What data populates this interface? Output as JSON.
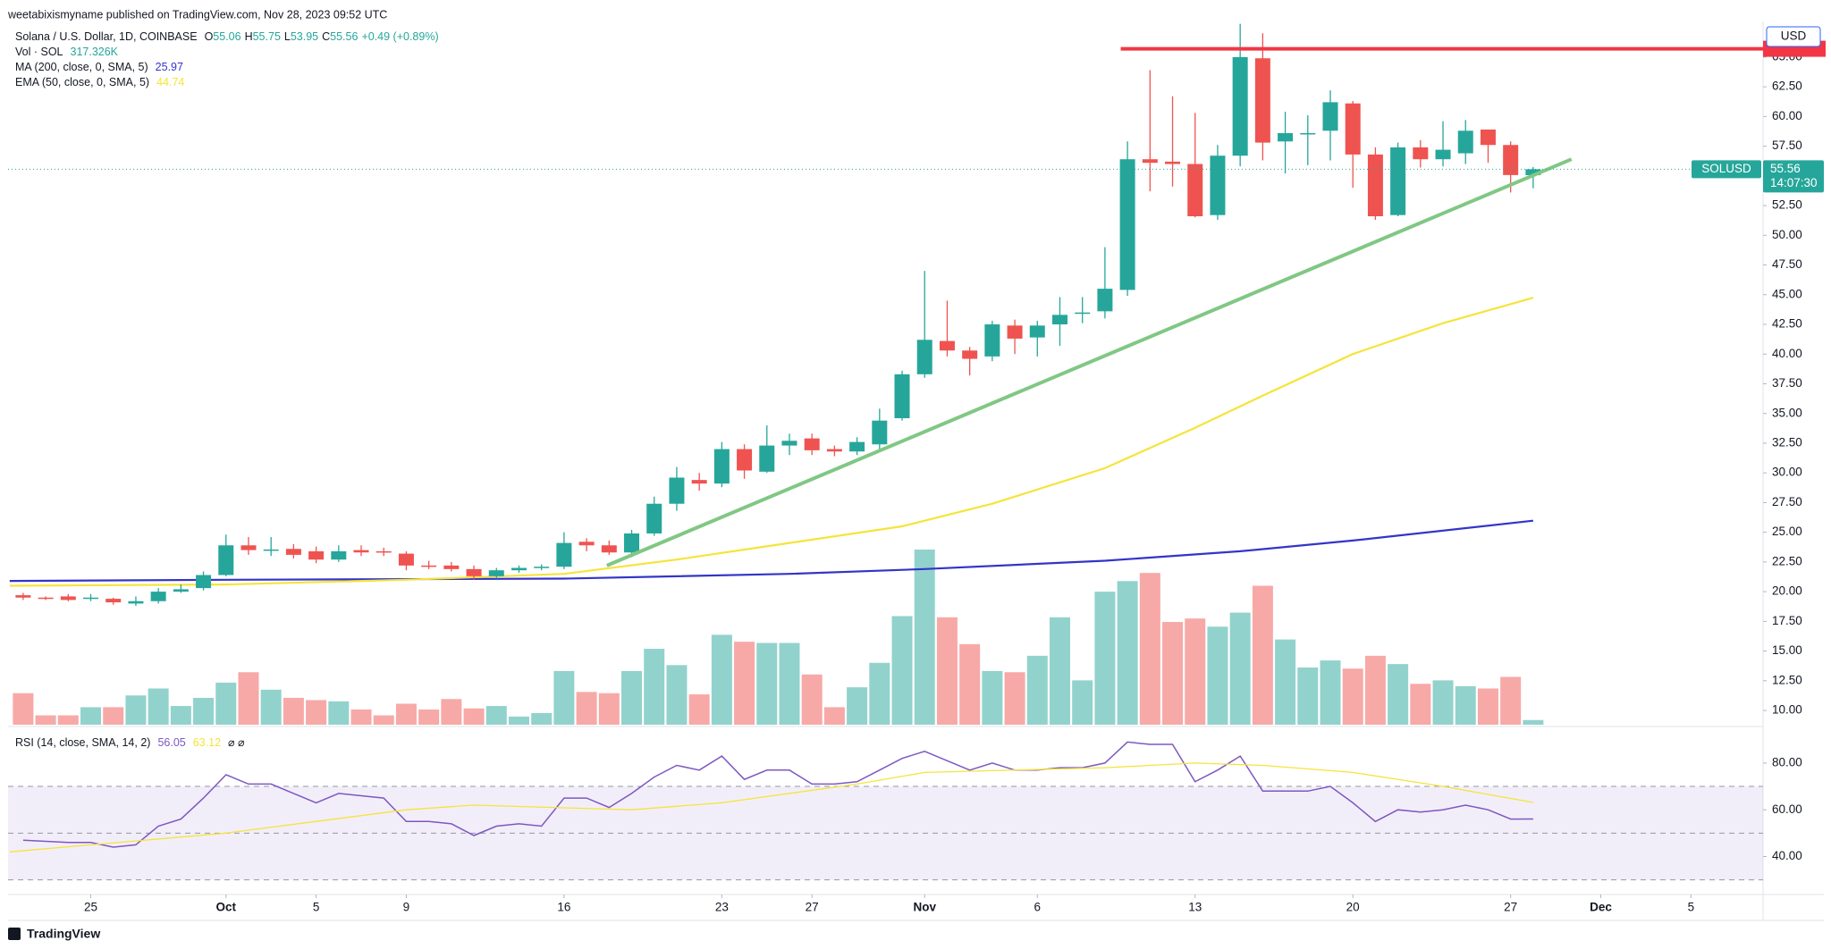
{
  "header": "weetabixismyname published on TradingView.com, Nov 28, 2023 09:52 UTC",
  "footer": "TradingView",
  "chart_data": [
    {
      "type": "candlestick",
      "title": "Solana / U.S. Dollar, 1D, COINBASE",
      "ohlc_letters": [
        "O",
        "H",
        "L",
        "C"
      ],
      "change": "+0.49 (+0.89%)",
      "up_color": "#26a69a",
      "down_color": "#ef5350",
      "open": [
        19.7,
        19.5,
        19.6,
        19.45,
        19.4,
        19.0,
        19.2,
        20.0,
        20.3,
        21.4,
        23.9,
        23.5,
        23.6,
        23.4,
        22.7,
        23.5,
        23.4,
        23.2,
        22.2,
        22.2,
        21.9,
        21.3,
        21.8,
        22.0,
        22.1,
        24.2,
        23.9,
        23.3,
        24.9,
        27.4,
        29.4,
        29.1,
        32.0,
        30.1,
        32.3,
        32.9,
        32.0,
        31.8,
        32.4,
        34.6,
        38.3,
        41.1,
        40.3,
        39.8,
        42.4,
        41.4,
        42.5,
        43.4,
        43.6,
        45.4,
        56.4,
        56.2,
        56.0,
        51.7,
        56.7,
        64.9,
        57.9,
        58.6,
        58.8,
        61.1,
        56.8,
        51.7,
        57.4,
        56.4,
        56.9,
        58.9,
        57.6,
        55.06
      ],
      "high": [
        19.9,
        19.6,
        19.8,
        19.8,
        19.5,
        19.6,
        20.3,
        20.6,
        21.7,
        24.8,
        24.6,
        24.6,
        24.0,
        23.8,
        23.9,
        23.9,
        23.7,
        23.4,
        22.6,
        22.5,
        22.2,
        22.0,
        22.2,
        22.3,
        25.0,
        24.5,
        24.3,
        25.2,
        28.0,
        30.5,
        30.0,
        32.6,
        32.4,
        34.0,
        33.3,
        33.3,
        32.3,
        33.0,
        35.4,
        38.6,
        47.0,
        44.5,
        40.6,
        42.8,
        42.9,
        42.8,
        44.8,
        44.8,
        49.0,
        57.9,
        63.9,
        61.7,
        60.3,
        57.6,
        67.8,
        67.0,
        60.4,
        60.1,
        62.2,
        61.3,
        57.4,
        57.8,
        58.0,
        59.6,
        59.7,
        58.9,
        57.9,
        55.75
      ],
      "low": [
        19.3,
        19.3,
        19.2,
        19.2,
        18.9,
        18.8,
        19.0,
        19.9,
        20.1,
        21.3,
        23.1,
        23.0,
        22.8,
        22.4,
        22.5,
        23.0,
        23.0,
        21.8,
        21.9,
        21.7,
        21.0,
        21.1,
        21.6,
        21.8,
        21.9,
        23.4,
        23.1,
        22.9,
        24.7,
        26.8,
        28.5,
        28.8,
        29.5,
        30.0,
        31.5,
        31.5,
        31.4,
        31.5,
        32.0,
        34.4,
        38.0,
        39.8,
        38.2,
        39.4,
        40.0,
        39.8,
        40.7,
        42.6,
        43.0,
        44.9,
        53.7,
        54.1,
        51.5,
        51.3,
        55.8,
        56.3,
        55.2,
        55.9,
        56.3,
        54.0,
        51.3,
        51.6,
        55.7,
        55.8,
        56.0,
        56.1,
        53.6,
        53.95
      ],
      "close": [
        19.5,
        19.45,
        19.3,
        19.5,
        19.1,
        19.2,
        20.0,
        20.2,
        21.4,
        23.9,
        23.5,
        23.55,
        23.1,
        22.7,
        23.4,
        23.3,
        23.3,
        22.2,
        22.1,
        21.9,
        21.3,
        21.8,
        22.0,
        22.1,
        24.1,
        23.9,
        23.3,
        24.9,
        27.4,
        29.6,
        29.1,
        32.0,
        30.2,
        32.3,
        32.7,
        31.9,
        31.8,
        32.6,
        34.4,
        38.3,
        41.2,
        40.3,
        39.6,
        42.5,
        41.3,
        42.4,
        43.3,
        43.5,
        45.5,
        56.4,
        56.1,
        56.0,
        51.6,
        56.7,
        65.0,
        57.8,
        58.6,
        58.6,
        61.2,
        56.8,
        51.6,
        57.4,
        56.4,
        57.2,
        58.8,
        57.6,
        55.07,
        55.56
      ],
      "volume_name": "Vol · SOL",
      "volume_legend": {
        "value": 317.326,
        "label": "317.326K"
      },
      "volume": [
        209,
        62,
        62,
        116,
        116,
        194,
        240,
        124,
        178,
        279,
        348,
        232,
        178,
        163,
        155,
        101,
        62,
        139,
        101,
        170,
        108,
        124,
        54,
        77,
        356,
        217,
        209,
        356,
        503,
        395,
        201,
        596,
        550,
        542,
        542,
        333,
        116,
        248,
        410,
        720,
        1161,
        712,
        534,
        356,
        348,
        457,
        712,
        294,
        882,
        952,
        1006,
        681,
        704,
        650,
        743,
        921,
        565,
        379,
        426,
        372,
        457,
        402,
        271,
        294,
        255,
        240,
        317,
        31
      ],
      "overlays": [
        {
          "name": "MA (200, close, 0, SMA, 5)",
          "color": "#3434c8",
          "x": [
            -0.6,
            9,
            24,
            34,
            40,
            48,
            54,
            59,
            67
          ],
          "values": [
            20.9,
            21.0,
            21.1,
            21.5,
            21.9,
            22.6,
            23.4,
            24.3,
            25.97
          ]
        },
        {
          "name": "EMA (50, close, 0, SMA, 5)",
          "color": "#f5e43a",
          "x": [
            -0.6,
            9,
            17,
            24,
            29,
            34,
            39,
            43,
            48,
            52,
            55,
            59,
            63,
            67
          ],
          "values": [
            20.5,
            20.6,
            21.0,
            21.5,
            22.7,
            24.1,
            25.5,
            27.4,
            30.4,
            33.8,
            36.5,
            40.0,
            42.6,
            44.74
          ]
        }
      ],
      "drawings": [
        {
          "color": "#81c784",
          "x": [
            25.9,
            68.7
          ],
          "values": [
            22.2,
            56.4
          ]
        },
        {
          "color": "#f23645",
          "x": [
            48.7,
            77.2
          ],
          "values": [
            65.7,
            65.7
          ]
        }
      ],
      "axis_unit": "USD",
      "symbol": "SOLUSD",
      "countdown": "14:07:30",
      "xlim": [
        -0.67,
        77.2
      ],
      "xticks": [
        {
          "value": 3,
          "label": "25"
        },
        {
          "value": 9,
          "label": "Oct"
        },
        {
          "value": 13,
          "label": "5"
        },
        {
          "value": 17,
          "label": "9"
        },
        {
          "value": 24,
          "label": "16"
        },
        {
          "value": 31,
          "label": "23"
        },
        {
          "value": 35,
          "label": "27"
        },
        {
          "value": 40,
          "label": "Nov"
        },
        {
          "value": 45,
          "label": "6"
        },
        {
          "value": 52,
          "label": "13"
        },
        {
          "value": 59,
          "label": "20"
        },
        {
          "value": 66,
          "label": "27"
        },
        {
          "value": 70,
          "label": "Dec"
        },
        {
          "value": 74,
          "label": "5"
        }
      ],
      "ylim": [
        8.8,
        68.0
      ],
      "yticks": [
        {
          "value": 10,
          "label": "10.00"
        },
        {
          "value": 12.5,
          "label": "12.50"
        },
        {
          "value": 15,
          "label": "15.00"
        },
        {
          "value": 17.5,
          "label": "17.50"
        },
        {
          "value": 20,
          "label": "20.00"
        },
        {
          "value": 22.5,
          "label": "22.50"
        },
        {
          "value": 25,
          "label": "25.00"
        },
        {
          "value": 27.5,
          "label": "27.50"
        },
        {
          "value": 30,
          "label": "30.00"
        },
        {
          "value": 32.5,
          "label": "32.50"
        },
        {
          "value": 35,
          "label": "35.00"
        },
        {
          "value": 37.5,
          "label": "37.50"
        },
        {
          "value": 40,
          "label": "40.00"
        },
        {
          "value": 42.5,
          "label": "42.50"
        },
        {
          "value": 45,
          "label": "45.00"
        },
        {
          "value": 47.5,
          "label": "47.50"
        },
        {
          "value": 50,
          "label": "50.00"
        },
        {
          "value": 52.5,
          "label": "52.50"
        },
        {
          "value": 55,
          "label": "55.00"
        },
        {
          "value": 57.5,
          "label": "57.50"
        },
        {
          "value": 60,
          "label": "60.00"
        },
        {
          "value": 62.5,
          "label": "62.50"
        },
        {
          "value": 65,
          "label": "65.00"
        }
      ]
    },
    {
      "type": "line",
      "title": "RSI (14, close, SMA, 14, 2)",
      "legend_suffix": "⌀ ⌀",
      "series": [
        {
          "color": "#7e57c2",
          "values": [
            47,
            46.5,
            46,
            46,
            44,
            45,
            53,
            56,
            65,
            75,
            71,
            71,
            67,
            63,
            67,
            66,
            65,
            55,
            55,
            54,
            49,
            53,
            54,
            53,
            65,
            65,
            61,
            67,
            74,
            79,
            77,
            83,
            73,
            77,
            77,
            71,
            71,
            72,
            77,
            82,
            85,
            81,
            77,
            80,
            77,
            77,
            78,
            78,
            80,
            89,
            88,
            88,
            72,
            77,
            83,
            68,
            68,
            68,
            70,
            63,
            55,
            60,
            59,
            60,
            62,
            60,
            56,
            56.05
          ]
        },
        {
          "color": "#f5e43a",
          "x": [
            -0.6,
            9,
            17,
            20,
            27,
            31,
            37,
            40,
            48,
            52,
            55,
            59,
            63,
            67
          ],
          "values": [
            42,
            50,
            60,
            62,
            60,
            63,
            71,
            76,
            78,
            80,
            79,
            76,
            70,
            63.12
          ]
        }
      ],
      "levels": [
        70,
        50,
        30
      ],
      "band_color": "#7e57c2",
      "ylim": [
        24.5,
        94.5
      ],
      "yticks": [
        {
          "value": 80,
          "label": "80.00"
        },
        {
          "value": 60,
          "label": "60.00"
        },
        {
          "value": 40,
          "label": "40.00"
        }
      ]
    }
  ]
}
